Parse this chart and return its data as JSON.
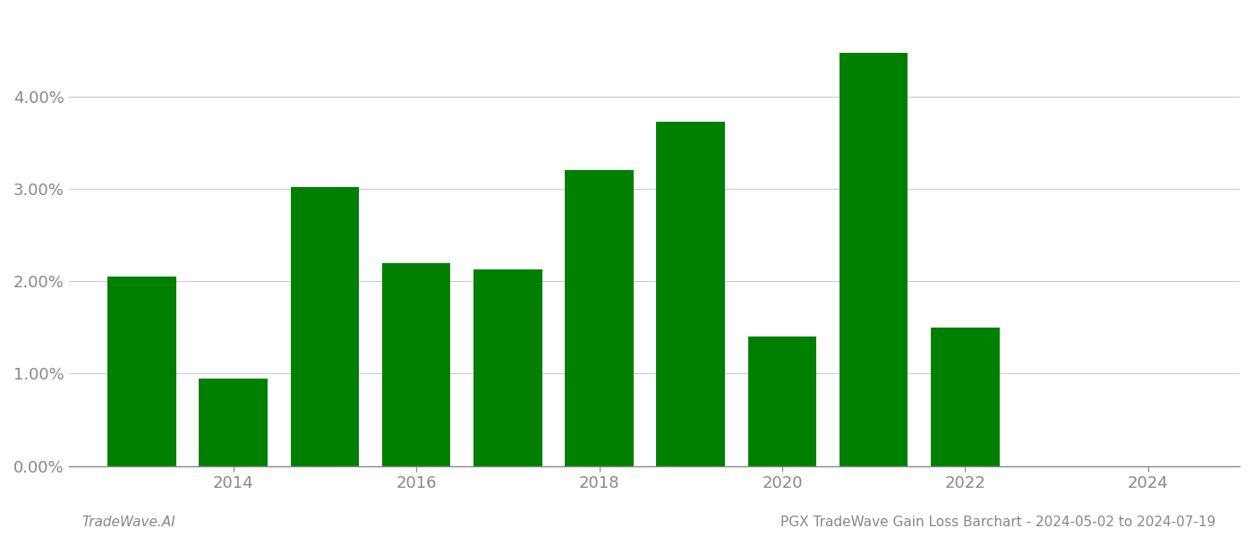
{
  "years": [
    2013,
    2014,
    2015,
    2016,
    2017,
    2018,
    2019,
    2020,
    2021,
    2022,
    2023
  ],
  "values": [
    0.0205,
    0.0095,
    0.0302,
    0.022,
    0.0213,
    0.032,
    0.0373,
    0.014,
    0.0447,
    0.015,
    0.0
  ],
  "bar_color": "#008000",
  "background_color": "#ffffff",
  "ytick_values": [
    0.0,
    0.01,
    0.02,
    0.03,
    0.04
  ],
  "ylim": [
    0,
    0.049
  ],
  "xlim": [
    2012.2,
    2025.0
  ],
  "xtick_values": [
    2014,
    2016,
    2018,
    2020,
    2022,
    2024
  ],
  "footer_left": "TradeWave.AI",
  "footer_right": "PGX TradeWave Gain Loss Barchart - 2024-05-02 to 2024-07-19",
  "bar_width": 0.75,
  "grid_color": "#cccccc",
  "axis_color": "#888888",
  "tick_label_color": "#888888",
  "footer_color": "#888888",
  "footer_fontsize": 11,
  "tick_fontsize": 13
}
